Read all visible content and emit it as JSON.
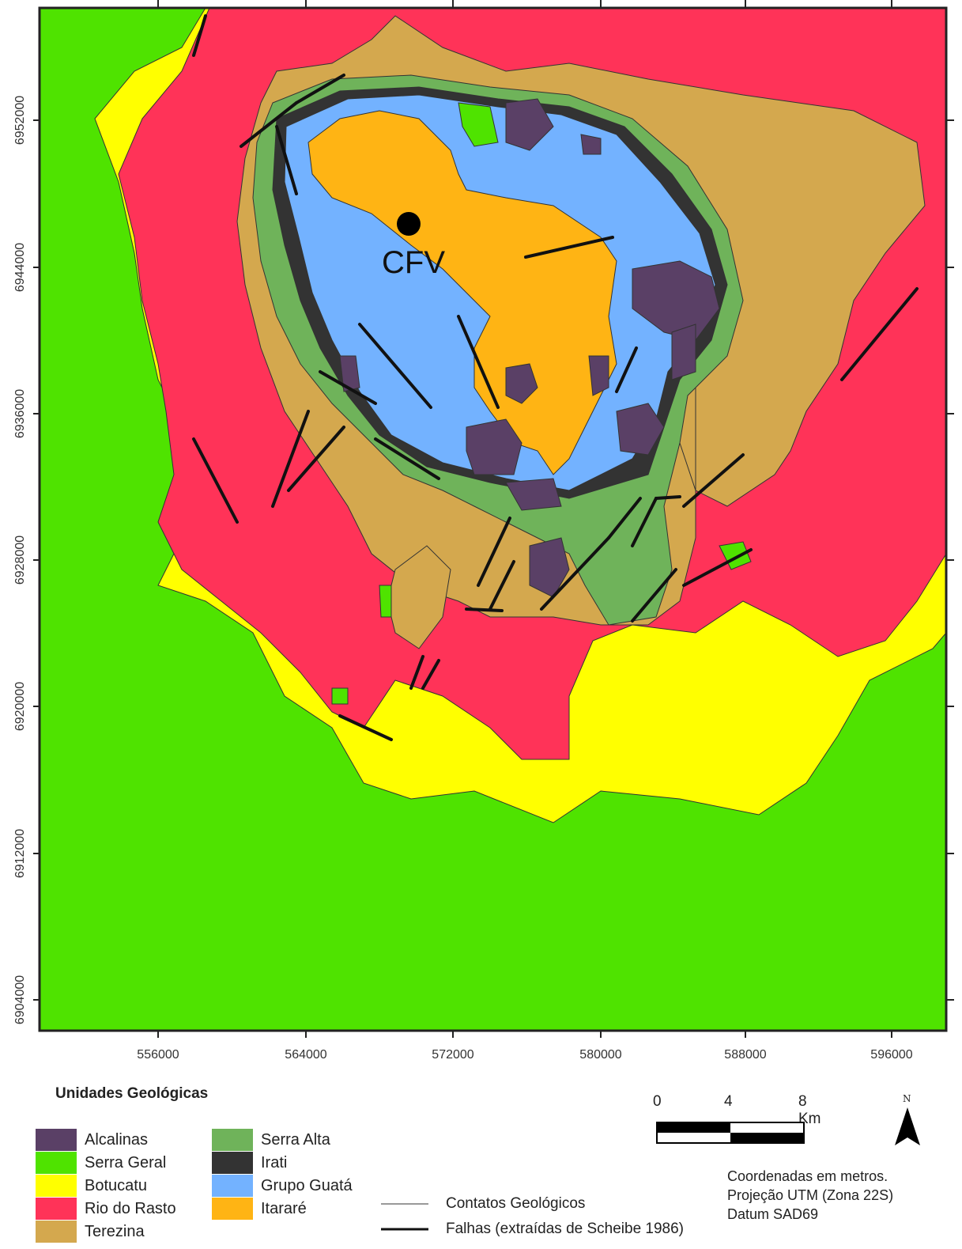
{
  "map": {
    "site_label": "CFV",
    "x_ticks": [
      "556000",
      "564000",
      "572000",
      "580000",
      "588000",
      "596000"
    ],
    "y_ticks": [
      "6952000",
      "6944000",
      "6936000",
      "6928000",
      "6920000",
      "6912000",
      "6904000"
    ]
  },
  "legend": {
    "title": "Unidades Geológicas",
    "units": [
      {
        "name": "Alcalinas",
        "color": "#5a4066"
      },
      {
        "name": "Serra Geral",
        "color": "#4fe300"
      },
      {
        "name": "Botucatu",
        "color": "#ffff00"
      },
      {
        "name": "Rio do Rasto",
        "color": "#ff3358"
      },
      {
        "name": "Terezina",
        "color": "#d4a84e"
      },
      {
        "name": "Serra Alta",
        "color": "#6fb35a"
      },
      {
        "name": "Irati",
        "color": "#333333"
      },
      {
        "name": "Grupo Guatá",
        "color": "#73b2ff"
      },
      {
        "name": "Itararé",
        "color": "#ffb414"
      }
    ],
    "lines": {
      "contacts": "Contatos Geológicos",
      "faults": "Falhas (extraídas de Scheibe 1986)"
    }
  },
  "scale_bar": {
    "zero": "0",
    "mid": "4",
    "end": "8 Km"
  },
  "north_arrow": {
    "label": "N"
  },
  "projection": {
    "line1": "Coordenadas em metros.",
    "line2": "Projeção UTM (Zona 22S)",
    "line3": "Datum SAD69"
  }
}
